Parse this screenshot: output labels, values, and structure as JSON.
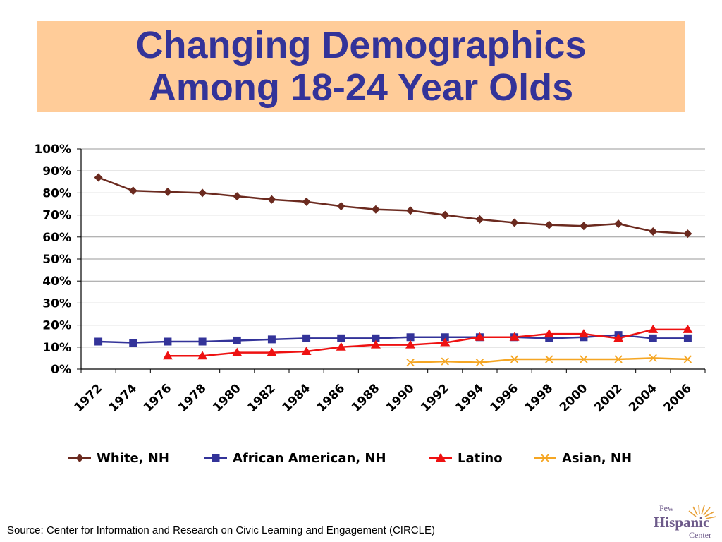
{
  "slide": {
    "title_line1": "Changing Demographics",
    "title_line2": "Among 18-24 Year Olds",
    "source": "Source:  Center for Information and Research on Civic Learning and Engagement (CIRCLE)",
    "title_bg": "#ffcc99",
    "title_color": "#333399"
  },
  "logo": {
    "line1": "Pew",
    "line2": "Hispanic",
    "line3": "Center"
  },
  "chart_data": {
    "type": "line",
    "title": "",
    "xlabel": "",
    "ylabel": "",
    "ylim": [
      0,
      100
    ],
    "y_ticks": [
      "0%",
      "10%",
      "20%",
      "30%",
      "40%",
      "50%",
      "60%",
      "70%",
      "80%",
      "90%",
      "100%"
    ],
    "x_range": [
      1972,
      2006
    ],
    "x_ticks": [
      "1972",
      "1974",
      "1976",
      "1978",
      "1980",
      "1982",
      "1984",
      "1986",
      "1988",
      "1990",
      "1992",
      "1994",
      "1996",
      "1998",
      "2000",
      "2002",
      "2004",
      "2006"
    ],
    "grid": "horizontal",
    "legend_position": "bottom",
    "series": [
      {
        "name": "White, NH",
        "color": "#6b2a1f",
        "marker": "diamond",
        "x": [
          1972,
          1974,
          1976,
          1978,
          1980,
          1982,
          1984,
          1986,
          1988,
          1990,
          1992,
          1994,
          1996,
          1998,
          2000,
          2002,
          2004,
          2006
        ],
        "y": [
          87,
          81,
          80.5,
          80,
          78.5,
          77,
          76,
          74,
          72.5,
          72,
          70,
          68,
          66.5,
          65.5,
          65,
          66,
          62.5,
          61.5
        ]
      },
      {
        "name": "African American, NH",
        "color": "#333399",
        "marker": "square",
        "x": [
          1972,
          1974,
          1976,
          1978,
          1980,
          1982,
          1984,
          1986,
          1988,
          1990,
          1992,
          1994,
          1996,
          1998,
          2000,
          2002,
          2004,
          2006
        ],
        "y": [
          12.5,
          12,
          12.5,
          12.5,
          13,
          13.5,
          14,
          14,
          14,
          14.5,
          14.5,
          14.5,
          14.5,
          14,
          14.5,
          15.5,
          14,
          14
        ]
      },
      {
        "name": "Latino",
        "color": "#ee1111",
        "marker": "triangle",
        "x": [
          1976,
          1978,
          1980,
          1982,
          1984,
          1986,
          1988,
          1990,
          1992,
          1994,
          1996,
          1998,
          2000,
          2002,
          2004,
          2006
        ],
        "y": [
          6,
          6,
          7.5,
          7.5,
          8,
          10,
          11,
          11,
          12,
          14.5,
          14.5,
          16,
          16,
          14,
          18,
          18
        ]
      },
      {
        "name": "Asian, NH",
        "color": "#f5a623",
        "marker": "x",
        "x": [
          1990,
          1992,
          1994,
          1996,
          1998,
          2000,
          2002,
          2004,
          2006
        ],
        "y": [
          3,
          3.5,
          3,
          4.5,
          4.5,
          4.5,
          4.5,
          5,
          4.5
        ]
      }
    ]
  }
}
